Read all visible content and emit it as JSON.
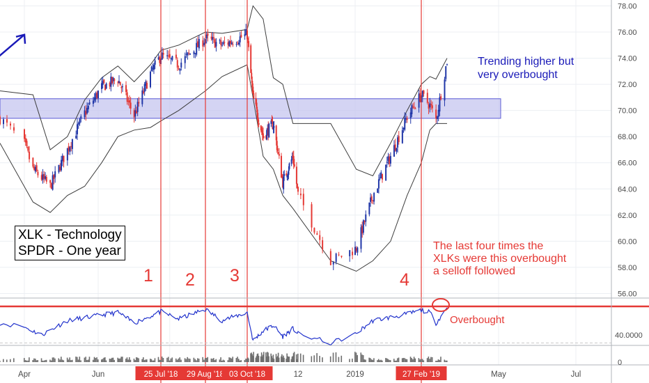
{
  "colors": {
    "candle_up": "#2137a8",
    "candle_down": "#e53935",
    "band": "#3d3d3d",
    "zone_fill": "#c5c5ef",
    "zone_border": "#5c5cd6",
    "marker_line": "#e53935",
    "rsi_line": "#2233cc",
    "arrow_blue": "#1a1ab8",
    "grid": "#eceff3"
  },
  "annotations": {
    "title_line1": "XLK - Technology",
    "title_line2": "SPDR - One year",
    "num1": "1",
    "num2": "2",
    "num3": "3",
    "num4": "4",
    "trend_line1": "Trending higher but",
    "trend_line2": "very overbought",
    "note_line1": "The last four times the",
    "note_line2": "XLKs were this overbought",
    "note_line3": "a selloff followed",
    "overbought": "Overbought"
  },
  "chart_data": [
    {
      "type": "candlestick",
      "ylim": [
        55.5,
        78.5
      ],
      "y_ticks": [
        "78.00",
        "76.00",
        "74.00",
        "72.00",
        "70.00",
        "68.00",
        "66.00",
        "64.00",
        "62.00",
        "60.00",
        "58.00",
        "56.00"
      ],
      "x_ticks": [
        "Apr",
        "Jun",
        "25 Jul '18",
        "29 Aug '18",
        "03 Oct '18",
        "12",
        "2019",
        "27 Feb '19",
        "May",
        "Jul"
      ],
      "highlighted_x_ticks": [
        "25 Jul '18",
        "29 Aug '18",
        "03 Oct '18",
        "27 Feb '19"
      ],
      "resistance_zone": [
        69.4,
        70.9
      ],
      "marker_dates": [
        "25 Jul '18",
        "29 Aug '18",
        "03 Oct '18",
        "27 Feb '19"
      ],
      "close_path": [
        [
          "Mar 26",
          69.4
        ],
        [
          "Apr 9",
          65.5
        ],
        [
          "Apr 23",
          64.2
        ],
        [
          "May 7",
          67.0
        ],
        [
          "May 21",
          69.8
        ],
        [
          "Jun 4",
          71.8
        ],
        [
          "Jun 18",
          72.4
        ],
        [
          "Jul 2",
          69.6
        ],
        [
          "Jul 16",
          72.8
        ],
        [
          "Jul 25",
          74.2
        ],
        [
          "Aug 8",
          73.5
        ],
        [
          "Aug 29",
          75.5
        ],
        [
          "Sep 12",
          75.0
        ],
        [
          "Oct 3",
          75.8
        ],
        [
          "Oct 11",
          71.0
        ],
        [
          "Oct 25",
          68.0
        ],
        [
          "Nov 8",
          69.0
        ],
        [
          "Nov 21",
          64.5
        ],
        [
          "Dec 5",
          66.5
        ],
        [
          "Dec 24",
          58.5
        ],
        [
          "Jan 3",
          59.5
        ],
        [
          "Jan 17",
          63.5
        ],
        [
          "Feb 1",
          66.5
        ],
        [
          "Feb 15",
          69.5
        ],
        [
          "Feb 27",
          71.2
        ],
        [
          "Mar 6",
          70.4
        ],
        [
          "Mar 11",
          69.3
        ],
        [
          "Mar 20",
          73.8
        ]
      ],
      "bollinger_upper_path": [
        [
          "Mar 26",
          71.5
        ],
        [
          "Apr 9",
          71.2
        ],
        [
          "Apr 23",
          67.0
        ],
        [
          "May 7",
          68.0
        ],
        [
          "May 21",
          70.8
        ],
        [
          "Jun 4",
          72.5
        ],
        [
          "Jun 18",
          73.4
        ],
        [
          "Jul 2",
          72.2
        ],
        [
          "Jul 16",
          73.5
        ],
        [
          "Jul 25",
          74.6
        ],
        [
          "Aug 8",
          75.0
        ],
        [
          "Aug 29",
          76.0
        ],
        [
          "Sep 12",
          75.9
        ],
        [
          "Oct 3",
          76.2
        ],
        [
          "Oct 11",
          78.0
        ],
        [
          "Oct 25",
          77.0
        ],
        [
          "Nov 8",
          72.5
        ],
        [
          "Nov 21",
          72.0
        ],
        [
          "Dec 5",
          69.0
        ],
        [
          "Dec 24",
          69.0
        ],
        [
          "Jan 3",
          65.5
        ],
        [
          "Jan 17",
          65.0
        ],
        [
          "Feb 1",
          67.5
        ],
        [
          "Feb 15",
          70.0
        ],
        [
          "Feb 27",
          72.0
        ],
        [
          "Mar 6",
          72.6
        ],
        [
          "Mar 11",
          72.4
        ],
        [
          "Mar 20",
          74.0
        ]
      ],
      "bollinger_lower_path": [
        [
          "Mar 26",
          67.5
        ],
        [
          "Apr 9",
          63.0
        ],
        [
          "Apr 23",
          62.2
        ],
        [
          "May 7",
          63.5
        ],
        [
          "May 21",
          64.2
        ],
        [
          "Jun 4",
          66.0
        ],
        [
          "Jun 18",
          68.0
        ],
        [
          "Jul 2",
          68.5
        ],
        [
          "Jul 16",
          68.7
        ],
        [
          "Jul 25",
          69.2
        ],
        [
          "Aug 8",
          70.0
        ],
        [
          "Aug 29",
          71.5
        ],
        [
          "Sep 12",
          72.6
        ],
        [
          "Oct 3",
          73.5
        ],
        [
          "Oct 11",
          71.0
        ],
        [
          "Oct 25",
          66.5
        ],
        [
          "Nov 8",
          65.5
        ],
        [
          "Nov 21",
          63.5
        ],
        [
          "Dec 5",
          62.5
        ],
        [
          "Dec 24",
          58.5
        ],
        [
          "Jan 3",
          57.7
        ],
        [
          "Jan 17",
          58.5
        ],
        [
          "Feb 1",
          60.0
        ],
        [
          "Feb 15",
          63.5
        ],
        [
          "Feb 27",
          66.0
        ],
        [
          "Mar 6",
          68.5
        ],
        [
          "Mar 11",
          69.0
        ],
        [
          "Mar 20",
          69.0
        ]
      ],
      "trendline": [
        [
          "Jan 3",
          59.5
        ],
        [
          "Feb 27",
          71.0
        ]
      ],
      "projection_arrow": [
        [
          "Mar 11",
          70.8
        ],
        [
          "Apr 2",
          75.8
        ]
      ]
    },
    {
      "type": "line",
      "name": "RSI",
      "y_ticks": [
        "40.0000"
      ],
      "overbought_level": 70,
      "path": [
        [
          "Mar 26",
          55
        ],
        [
          "Apr 16",
          40
        ],
        [
          "May 7",
          58
        ],
        [
          "Jun 4",
          65
        ],
        [
          "Jun 18",
          68
        ],
        [
          "Jul 2",
          55
        ],
        [
          "Jul 25",
          69
        ],
        [
          "Aug 8",
          60
        ],
        [
          "Aug 29",
          72
        ],
        [
          "Sep 12",
          58
        ],
        [
          "Oct 3",
          68
        ],
        [
          "Oct 11",
          33
        ],
        [
          "Oct 25",
          45
        ],
        [
          "Nov 8",
          52
        ],
        [
          "Nov 21",
          38
        ],
        [
          "Dec 5",
          48
        ],
        [
          "Dec 24",
          30
        ],
        [
          "Jan 3",
          42
        ],
        [
          "Jan 17",
          58
        ],
        [
          "Feb 1",
          62
        ],
        [
          "Feb 15",
          66
        ],
        [
          "Feb 27",
          71
        ],
        [
          "Mar 6",
          68
        ],
        [
          "Mar 11",
          55
        ],
        [
          "Mar 20",
          74
        ]
      ]
    },
    {
      "type": "bar",
      "name": "Volume",
      "y_ticks": [
        "0"
      ]
    }
  ]
}
